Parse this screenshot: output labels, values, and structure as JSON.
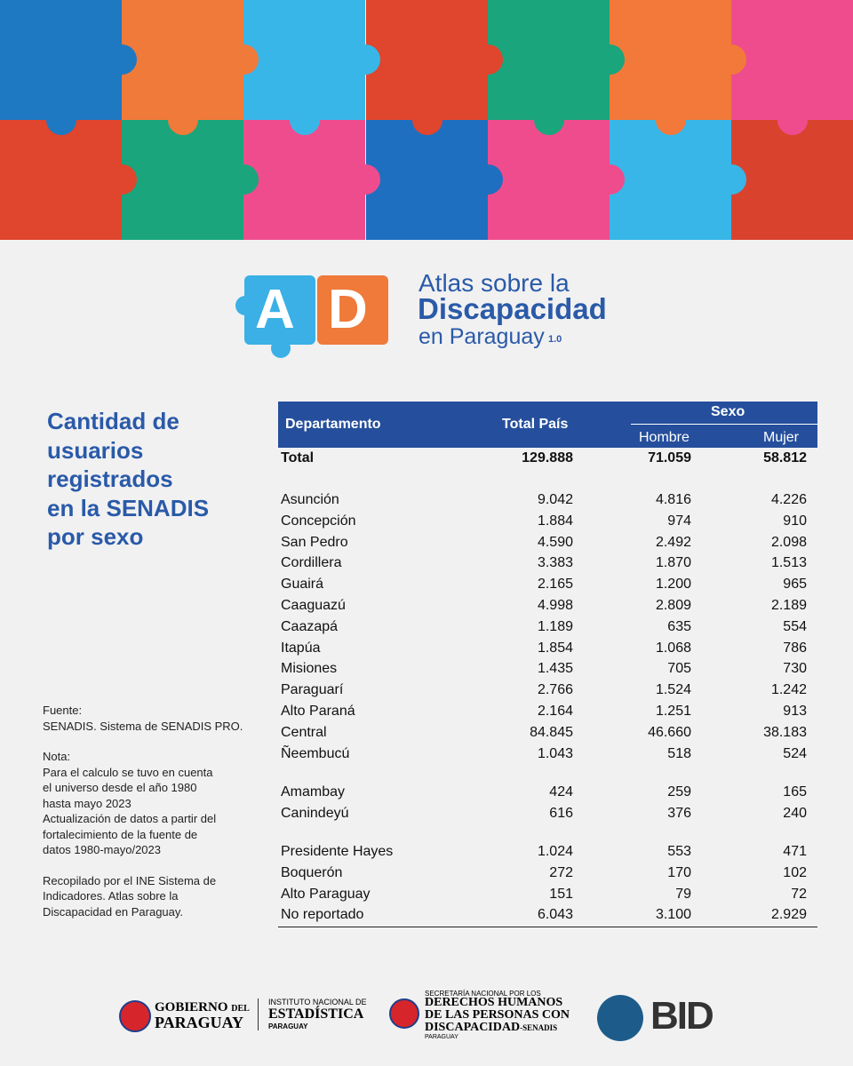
{
  "logo": {
    "letters": [
      "A",
      "D"
    ],
    "line1": "Atlas sobre la",
    "line2": "Discapacidad",
    "line3": "en Paraguay",
    "version": "1.0"
  },
  "title": [
    "Cantidad de",
    "usuarios",
    "registrados",
    "en la SENADIS",
    "por sexo"
  ],
  "notes": [
    [
      "Fuente:",
      "SENADIS. Sistema de SENADIS PRO."
    ],
    [
      "Nota:",
      "Para el calculo se tuvo en cuenta",
      "el universo desde el año 1980",
      "hasta mayo 2023",
      "Actualización de datos a partir del",
      "fortalecimiento de la fuente de",
      "datos 1980-mayo/2023"
    ],
    [
      "Recopilado por el INE Sistema de",
      "Indicadores. Atlas sobre la",
      "Discapacidad en Paraguay."
    ]
  ],
  "table": {
    "header": {
      "department": "Departamento",
      "total": "Total País",
      "group": "Sexo",
      "men": "Hombre",
      "women": "Mujer"
    },
    "total": [
      "Total",
      "129.888",
      "71.059",
      "58.812"
    ],
    "groups": [
      [
        [
          "Asunción",
          "9.042",
          "4.816",
          "4.226"
        ],
        [
          "Concepción",
          "1.884",
          "974",
          "910"
        ],
        [
          "San Pedro",
          "4.590",
          "2.492",
          "2.098"
        ],
        [
          "Cordillera",
          "3.383",
          "1.870",
          "1.513"
        ],
        [
          "Guairá",
          "2.165",
          "1.200",
          "965"
        ],
        [
          "Caaguazú",
          "4.998",
          "2.809",
          "2.189"
        ],
        [
          "Caazapá",
          "1.189",
          "635",
          "554"
        ],
        [
          "Itapúa",
          "1.854",
          "1.068",
          "786"
        ],
        [
          "Misiones",
          "1.435",
          "705",
          "730"
        ],
        [
          "Paraguarí",
          "2.766",
          "1.524",
          "1.242"
        ],
        [
          "Alto Paraná",
          "2.164",
          "1.251",
          "913"
        ],
        [
          "Central",
          "84.845",
          "46.660",
          "38.183"
        ],
        [
          "Ñeembucú",
          "1.043",
          "518",
          "524"
        ]
      ],
      [
        [
          "Amambay",
          "424",
          "259",
          "165"
        ],
        [
          "Canindeyú",
          "616",
          "376",
          "240"
        ]
      ],
      [
        [
          "Presidente Hayes",
          "1.024",
          "553",
          "471"
        ],
        [
          "Boquerón",
          "272",
          "170",
          "102"
        ],
        [
          "Alto Paraguay",
          "151",
          "79",
          "72"
        ],
        [
          "No reportado",
          "6.043",
          "3.100",
          "2.929"
        ]
      ]
    ]
  },
  "footer": {
    "gov": [
      "GOBIERNO",
      "DEL",
      "PARAGUAY"
    ],
    "ine": [
      "INSTITUTO NACIONAL DE",
      "ESTADÍSTICA",
      "PARAGUAY"
    ],
    "senadis": [
      "SECRETARÍA NACIONAL POR LOS",
      "DERECHOS HUMANOS",
      "DE LAS PERSONAS CON",
      "DISCAPACIDAD",
      "-SENADIS",
      "PARAGUAY"
    ],
    "bid": "BID"
  }
}
